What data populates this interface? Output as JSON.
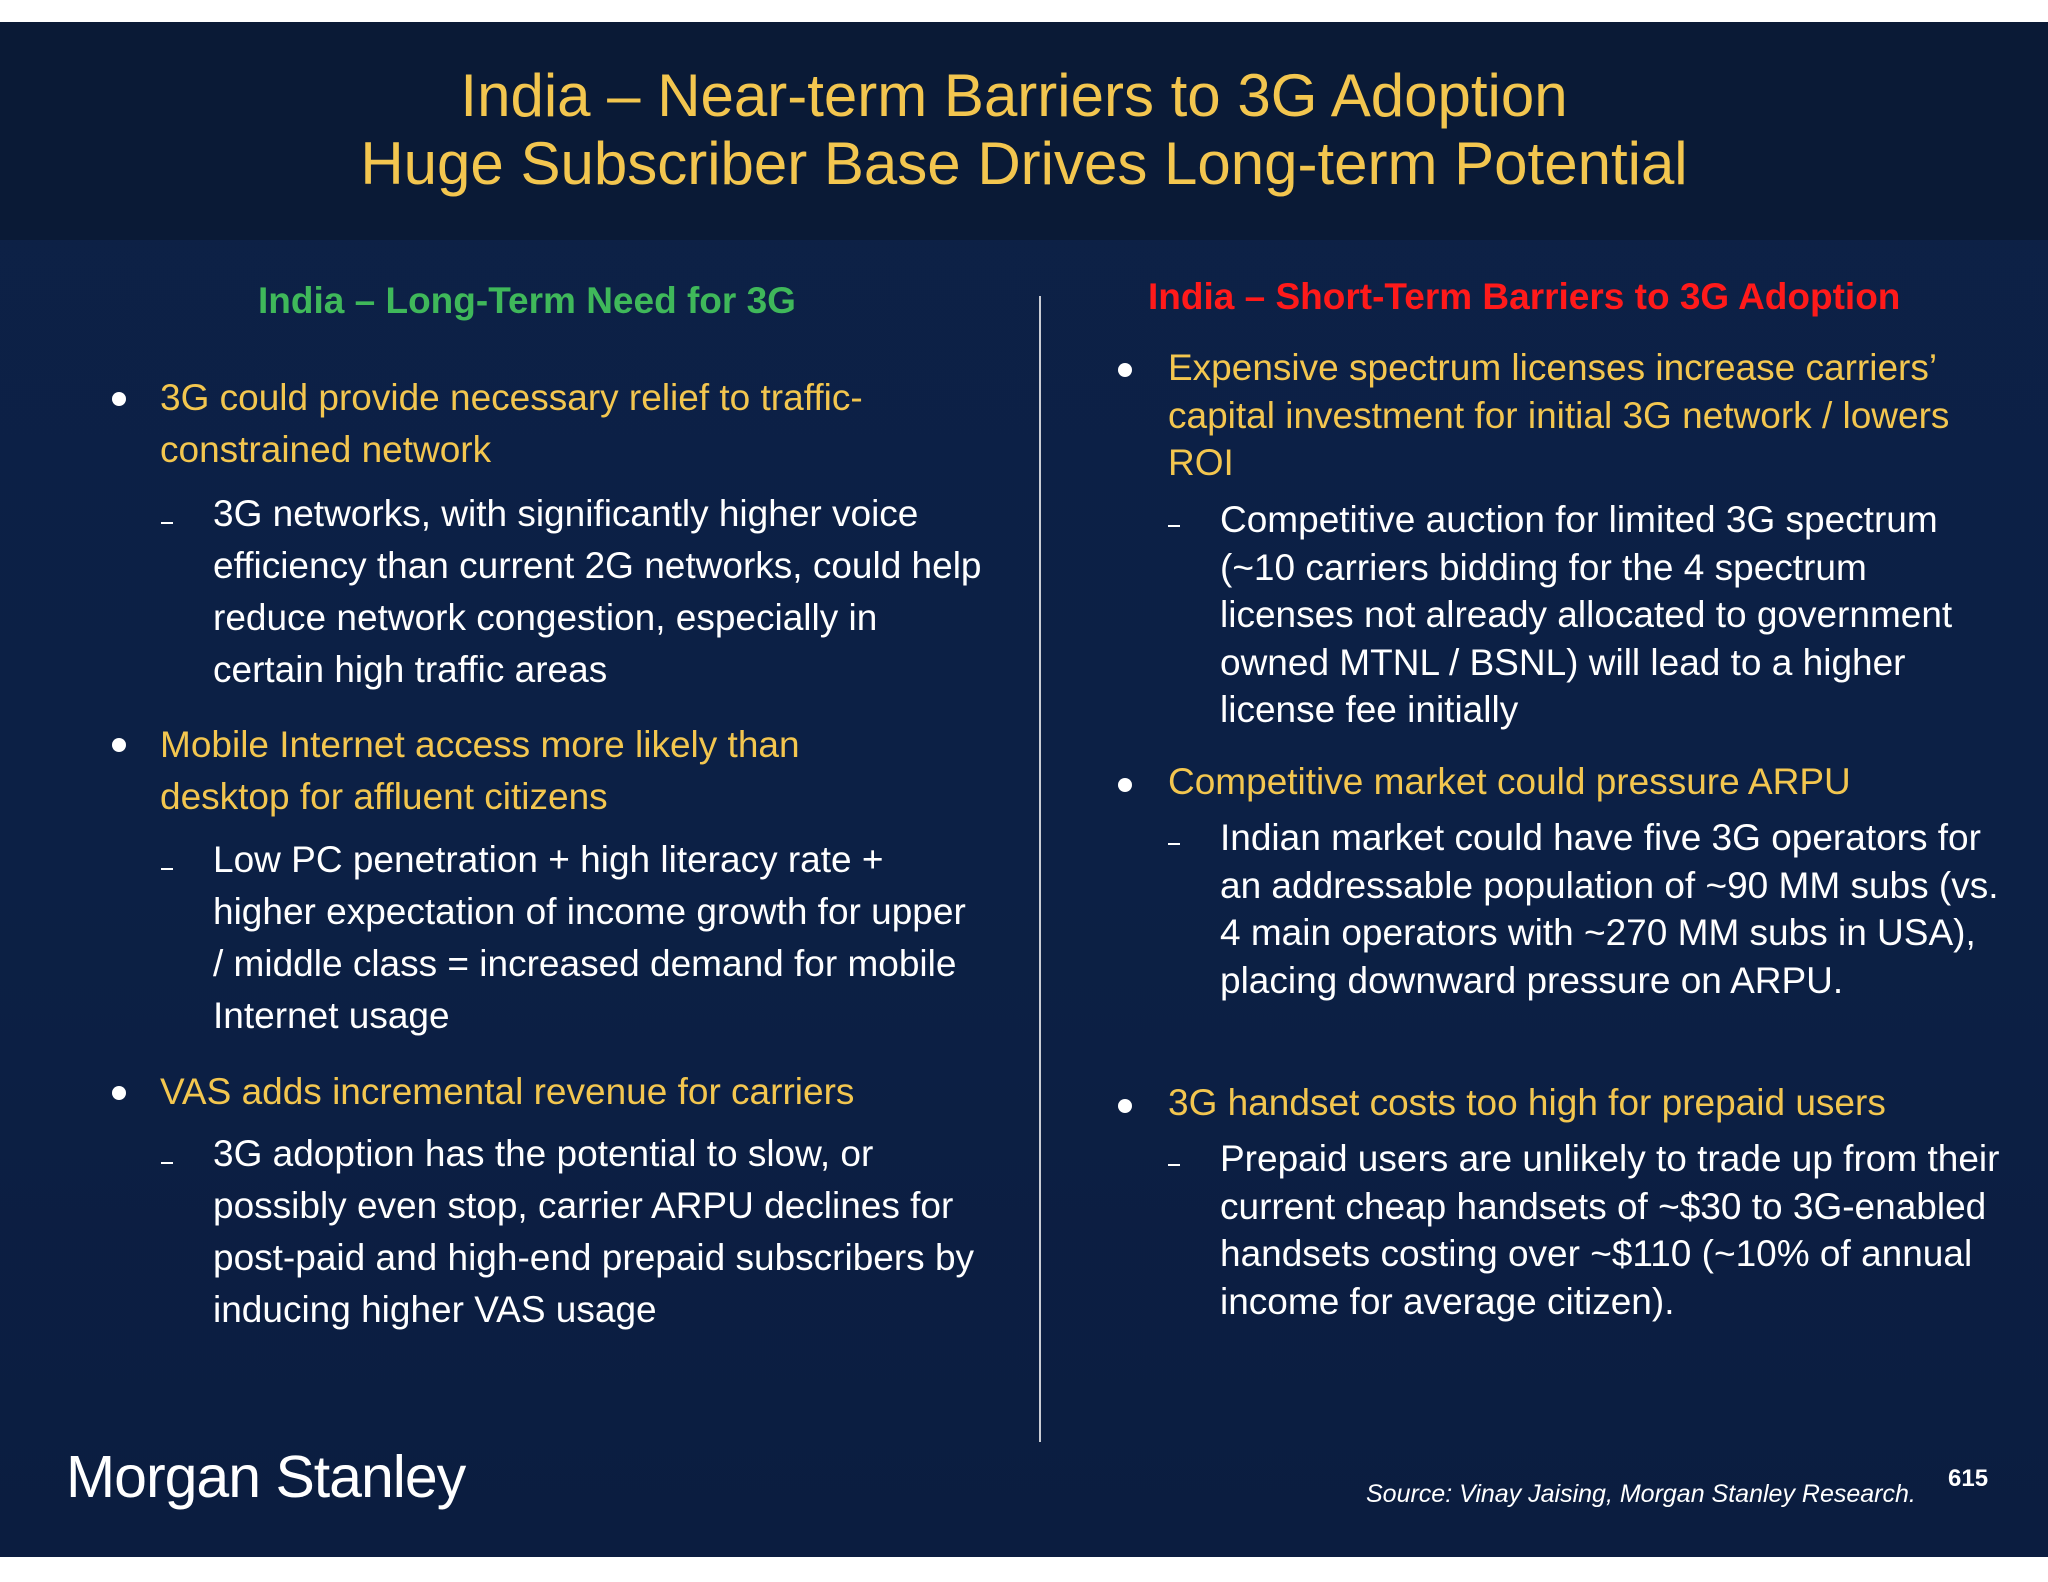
{
  "header": {
    "title_line1": "India – Near-term Barriers to 3G Adoption",
    "title_line2": "Huge Subscriber Base Drives Long-term Potential"
  },
  "left": {
    "heading": "India – Long-Term Need for 3G",
    "bullets": [
      {
        "text": "3G could provide necessary relief to traffic-constrained network",
        "sub": "3G networks, with significantly higher voice efficiency than current 2G networks, could help reduce network congestion, especially in certain high traffic areas"
      },
      {
        "text": "Mobile Internet access more likely than desktop for affluent citizens",
        "sub": "Low PC penetration + high literacy rate + higher expectation of income growth for upper / middle class = increased demand for mobile Internet usage"
      },
      {
        "text": "VAS adds incremental revenue for carriers",
        "sub": "3G adoption has the potential to slow, or possibly even stop, carrier ARPU declines for post-paid and high-end prepaid subscribers by inducing higher VAS usage"
      }
    ]
  },
  "right": {
    "heading": "India – Short-Term Barriers to 3G Adoption",
    "bullets": [
      {
        "text": "Expensive spectrum licenses increase carriers’ capital investment for initial 3G network / lowers ROI",
        "sub": "Competitive auction for limited 3G spectrum (~10 carriers bidding for the 4 spectrum licenses not already allocated to government owned MTNL / BSNL) will lead to a higher license fee initially"
      },
      {
        "text": "Competitive market could pressure ARPU",
        "sub": "Indian market could have five 3G operators for an addressable population of ~90 MM subs (vs. 4 main operators with ~270 MM subs in USA), placing downward pressure on ARPU."
      },
      {
        "text": "3G handset costs too high for prepaid users",
        "sub": "Prepaid users are unlikely to trade up from their current cheap handsets of ~$30 to 3G-enabled handsets costing over ~$110 (~10% of annual income for average citizen)."
      }
    ]
  },
  "footer": {
    "logo": "Morgan Stanley",
    "source": "Source: Vinay Jaising, Morgan Stanley Research.",
    "page_number": "615"
  },
  "colors": {
    "title": "#f3c64f",
    "left_heading": "#3fb85a",
    "right_heading": "#ff1a1a",
    "background": "#0c2045"
  }
}
